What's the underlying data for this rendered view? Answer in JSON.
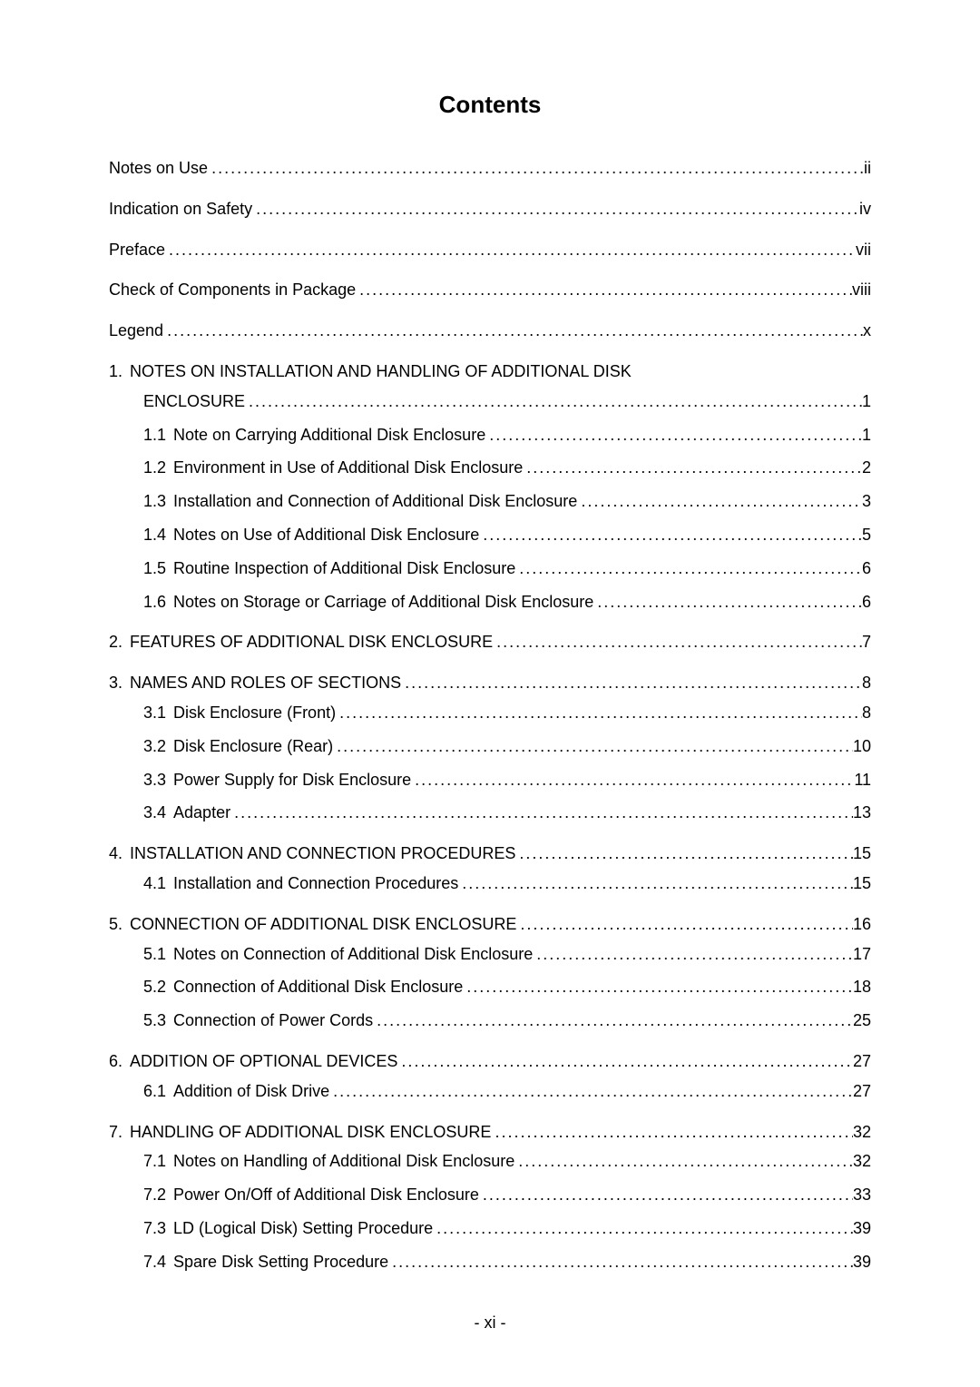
{
  "title": "Contents",
  "leader_dots": "........................................................................................................................................................",
  "front_matter": [
    {
      "label": "Notes on Use",
      "page": "ii"
    },
    {
      "label": "Indication on Safety",
      "page": "iv"
    },
    {
      "label": "Preface",
      "page": "vii"
    },
    {
      "label": "Check of Components in Package",
      "page": "viii"
    },
    {
      "label": "Legend",
      "page": "x"
    }
  ],
  "sections": [
    {
      "num": "1.",
      "label": "NOTES ON INSTALLATION AND HANDLING OF ADDITIONAL DISK",
      "continuation_label": "ENCLOSURE",
      "page": "1",
      "subs": [
        {
          "num": "1.1",
          "label": "Note on Carrying Additional Disk Enclosure",
          "page": "1"
        },
        {
          "num": "1.2",
          "label": "Environment in Use of Additional Disk Enclosure",
          "page": "2"
        },
        {
          "num": "1.3",
          "label": "Installation and Connection of Additional Disk Enclosure",
          "page": "3"
        },
        {
          "num": "1.4",
          "label": "Notes on Use of Additional Disk Enclosure",
          "page": "5"
        },
        {
          "num": "1.5",
          "label": "Routine Inspection of Additional Disk Enclosure",
          "page": "6"
        },
        {
          "num": "1.6",
          "label": "Notes on Storage or Carriage of Additional Disk Enclosure",
          "page": "6"
        }
      ]
    },
    {
      "num": "2.",
      "label": "FEATURES OF ADDITIONAL DISK ENCLOSURE",
      "page": "7",
      "subs": []
    },
    {
      "num": "3.",
      "label": "NAMES AND ROLES OF SECTIONS",
      "page": "8",
      "subs": [
        {
          "num": "3.1",
          "label": "Disk Enclosure (Front)",
          "page": "8"
        },
        {
          "num": "3.2",
          "label": "Disk Enclosure (Rear)",
          "page": "10"
        },
        {
          "num": "3.3",
          "label": "Power Supply for Disk Enclosure",
          "page": "11"
        },
        {
          "num": "3.4",
          "label": "Adapter",
          "page": "13"
        }
      ]
    },
    {
      "num": "4.",
      "label": "INSTALLATION AND CONNECTION PROCEDURES",
      "page": "15",
      "subs": [
        {
          "num": "4.1",
          "label": "Installation and Connection Procedures",
          "page": "15"
        }
      ]
    },
    {
      "num": "5.",
      "label": "CONNECTION OF ADDITIONAL DISK ENCLOSURE",
      "page": "16",
      "subs": [
        {
          "num": "5.1",
          "label": "Notes on Connection of Additional Disk Enclosure",
          "page": "17"
        },
        {
          "num": "5.2",
          "label": "Connection of Additional Disk Enclosure",
          "page": "18"
        },
        {
          "num": "5.3",
          "label": "Connection of Power Cords",
          "page": "25"
        }
      ]
    },
    {
      "num": "6.",
      "label": "ADDITION OF OPTIONAL DEVICES",
      "page": "27",
      "subs": [
        {
          "num": "6.1",
          "label": "Addition of Disk Drive",
          "page": "27"
        }
      ]
    },
    {
      "num": "7.",
      "label": "HANDLING OF ADDITIONAL DISK ENCLOSURE",
      "page": "32",
      "subs": [
        {
          "num": "7.1",
          "label": "Notes on Handling of Additional Disk Enclosure",
          "page": "32"
        },
        {
          "num": "7.2",
          "label": "Power On/Off of Additional Disk Enclosure",
          "page": "33"
        },
        {
          "num": "7.3",
          "label": "LD (Logical Disk) Setting Procedure",
          "page": "39"
        },
        {
          "num": "7.4",
          "label": "Spare Disk Setting Procedure",
          "page": "39"
        }
      ]
    }
  ],
  "footer": "- xi -"
}
